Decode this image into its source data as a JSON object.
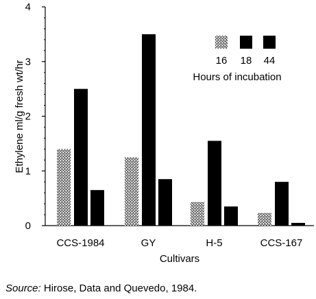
{
  "chart_data": {
    "type": "bar",
    "categories": [
      "CCS-1984",
      "GY",
      "H-5",
      "CCS-167"
    ],
    "series": [
      {
        "name": "16",
        "values": [
          1.4,
          1.25,
          0.43,
          0.23
        ],
        "pattern": "stipple"
      },
      {
        "name": "18",
        "values": [
          2.5,
          3.5,
          1.55,
          0.8
        ],
        "pattern": "solid"
      },
      {
        "name": "44",
        "values": [
          0.65,
          0.85,
          0.35,
          0.05
        ],
        "pattern": "solid"
      }
    ],
    "yticks": [
      0,
      1,
      2,
      3,
      4
    ],
    "ylim": [
      0,
      4
    ],
    "ylabel": "Ethylene ml/g fresh wt/hr",
    "xlabel": "Cultivars",
    "legend_title": "Hours of incubation",
    "legend_position": "top-right",
    "grid": false
  },
  "source": {
    "label": "Source:",
    "text": "Hirose, Data and Quevedo, 1984."
  },
  "colors": {
    "bar": "#000000",
    "background": "#ffffff"
  }
}
